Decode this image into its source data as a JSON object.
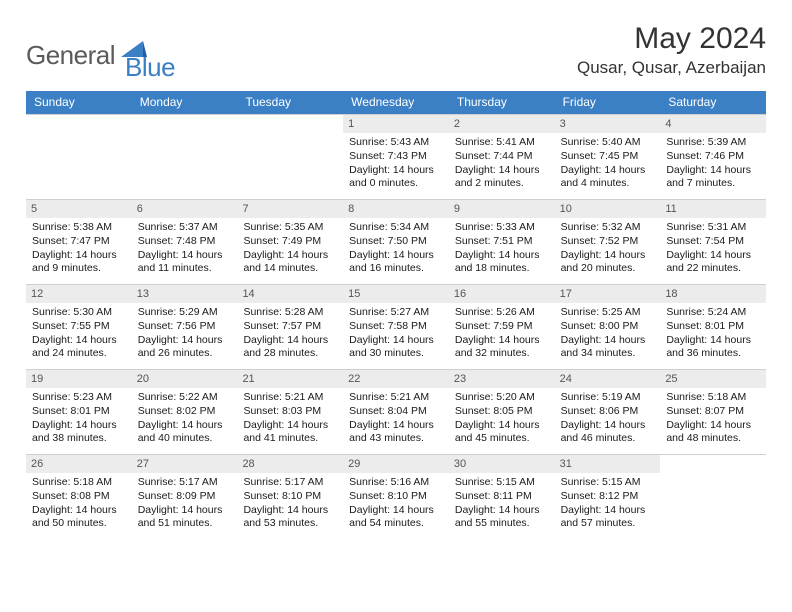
{
  "brand": {
    "part1": "General",
    "part2": "Blue"
  },
  "title": "May 2024",
  "location": "Qusar, Qusar, Azerbaijan",
  "header_bg": "#3b7fc4",
  "daynum_bg": "#ececec",
  "grid_border": "#cfcfcf",
  "day_headers": [
    "Sunday",
    "Monday",
    "Tuesday",
    "Wednesday",
    "Thursday",
    "Friday",
    "Saturday"
  ],
  "weeks": [
    [
      null,
      null,
      null,
      {
        "n": "1",
        "sr": "Sunrise: 5:43 AM",
        "ss": "Sunset: 7:43 PM",
        "d1": "Daylight: 14 hours",
        "d2": "and 0 minutes."
      },
      {
        "n": "2",
        "sr": "Sunrise: 5:41 AM",
        "ss": "Sunset: 7:44 PM",
        "d1": "Daylight: 14 hours",
        "d2": "and 2 minutes."
      },
      {
        "n": "3",
        "sr": "Sunrise: 5:40 AM",
        "ss": "Sunset: 7:45 PM",
        "d1": "Daylight: 14 hours",
        "d2": "and 4 minutes."
      },
      {
        "n": "4",
        "sr": "Sunrise: 5:39 AM",
        "ss": "Sunset: 7:46 PM",
        "d1": "Daylight: 14 hours",
        "d2": "and 7 minutes."
      }
    ],
    [
      {
        "n": "5",
        "sr": "Sunrise: 5:38 AM",
        "ss": "Sunset: 7:47 PM",
        "d1": "Daylight: 14 hours",
        "d2": "and 9 minutes."
      },
      {
        "n": "6",
        "sr": "Sunrise: 5:37 AM",
        "ss": "Sunset: 7:48 PM",
        "d1": "Daylight: 14 hours",
        "d2": "and 11 minutes."
      },
      {
        "n": "7",
        "sr": "Sunrise: 5:35 AM",
        "ss": "Sunset: 7:49 PM",
        "d1": "Daylight: 14 hours",
        "d2": "and 14 minutes."
      },
      {
        "n": "8",
        "sr": "Sunrise: 5:34 AM",
        "ss": "Sunset: 7:50 PM",
        "d1": "Daylight: 14 hours",
        "d2": "and 16 minutes."
      },
      {
        "n": "9",
        "sr": "Sunrise: 5:33 AM",
        "ss": "Sunset: 7:51 PM",
        "d1": "Daylight: 14 hours",
        "d2": "and 18 minutes."
      },
      {
        "n": "10",
        "sr": "Sunrise: 5:32 AM",
        "ss": "Sunset: 7:52 PM",
        "d1": "Daylight: 14 hours",
        "d2": "and 20 minutes."
      },
      {
        "n": "11",
        "sr": "Sunrise: 5:31 AM",
        "ss": "Sunset: 7:54 PM",
        "d1": "Daylight: 14 hours",
        "d2": "and 22 minutes."
      }
    ],
    [
      {
        "n": "12",
        "sr": "Sunrise: 5:30 AM",
        "ss": "Sunset: 7:55 PM",
        "d1": "Daylight: 14 hours",
        "d2": "and 24 minutes."
      },
      {
        "n": "13",
        "sr": "Sunrise: 5:29 AM",
        "ss": "Sunset: 7:56 PM",
        "d1": "Daylight: 14 hours",
        "d2": "and 26 minutes."
      },
      {
        "n": "14",
        "sr": "Sunrise: 5:28 AM",
        "ss": "Sunset: 7:57 PM",
        "d1": "Daylight: 14 hours",
        "d2": "and 28 minutes."
      },
      {
        "n": "15",
        "sr": "Sunrise: 5:27 AM",
        "ss": "Sunset: 7:58 PM",
        "d1": "Daylight: 14 hours",
        "d2": "and 30 minutes."
      },
      {
        "n": "16",
        "sr": "Sunrise: 5:26 AM",
        "ss": "Sunset: 7:59 PM",
        "d1": "Daylight: 14 hours",
        "d2": "and 32 minutes."
      },
      {
        "n": "17",
        "sr": "Sunrise: 5:25 AM",
        "ss": "Sunset: 8:00 PM",
        "d1": "Daylight: 14 hours",
        "d2": "and 34 minutes."
      },
      {
        "n": "18",
        "sr": "Sunrise: 5:24 AM",
        "ss": "Sunset: 8:01 PM",
        "d1": "Daylight: 14 hours",
        "d2": "and 36 minutes."
      }
    ],
    [
      {
        "n": "19",
        "sr": "Sunrise: 5:23 AM",
        "ss": "Sunset: 8:01 PM",
        "d1": "Daylight: 14 hours",
        "d2": "and 38 minutes."
      },
      {
        "n": "20",
        "sr": "Sunrise: 5:22 AM",
        "ss": "Sunset: 8:02 PM",
        "d1": "Daylight: 14 hours",
        "d2": "and 40 minutes."
      },
      {
        "n": "21",
        "sr": "Sunrise: 5:21 AM",
        "ss": "Sunset: 8:03 PM",
        "d1": "Daylight: 14 hours",
        "d2": "and 41 minutes."
      },
      {
        "n": "22",
        "sr": "Sunrise: 5:21 AM",
        "ss": "Sunset: 8:04 PM",
        "d1": "Daylight: 14 hours",
        "d2": "and 43 minutes."
      },
      {
        "n": "23",
        "sr": "Sunrise: 5:20 AM",
        "ss": "Sunset: 8:05 PM",
        "d1": "Daylight: 14 hours",
        "d2": "and 45 minutes."
      },
      {
        "n": "24",
        "sr": "Sunrise: 5:19 AM",
        "ss": "Sunset: 8:06 PM",
        "d1": "Daylight: 14 hours",
        "d2": "and 46 minutes."
      },
      {
        "n": "25",
        "sr": "Sunrise: 5:18 AM",
        "ss": "Sunset: 8:07 PM",
        "d1": "Daylight: 14 hours",
        "d2": "and 48 minutes."
      }
    ],
    [
      {
        "n": "26",
        "sr": "Sunrise: 5:18 AM",
        "ss": "Sunset: 8:08 PM",
        "d1": "Daylight: 14 hours",
        "d2": "and 50 minutes."
      },
      {
        "n": "27",
        "sr": "Sunrise: 5:17 AM",
        "ss": "Sunset: 8:09 PM",
        "d1": "Daylight: 14 hours",
        "d2": "and 51 minutes."
      },
      {
        "n": "28",
        "sr": "Sunrise: 5:17 AM",
        "ss": "Sunset: 8:10 PM",
        "d1": "Daylight: 14 hours",
        "d2": "and 53 minutes."
      },
      {
        "n": "29",
        "sr": "Sunrise: 5:16 AM",
        "ss": "Sunset: 8:10 PM",
        "d1": "Daylight: 14 hours",
        "d2": "and 54 minutes."
      },
      {
        "n": "30",
        "sr": "Sunrise: 5:15 AM",
        "ss": "Sunset: 8:11 PM",
        "d1": "Daylight: 14 hours",
        "d2": "and 55 minutes."
      },
      {
        "n": "31",
        "sr": "Sunrise: 5:15 AM",
        "ss": "Sunset: 8:12 PM",
        "d1": "Daylight: 14 hours",
        "d2": "and 57 minutes."
      },
      null
    ]
  ]
}
